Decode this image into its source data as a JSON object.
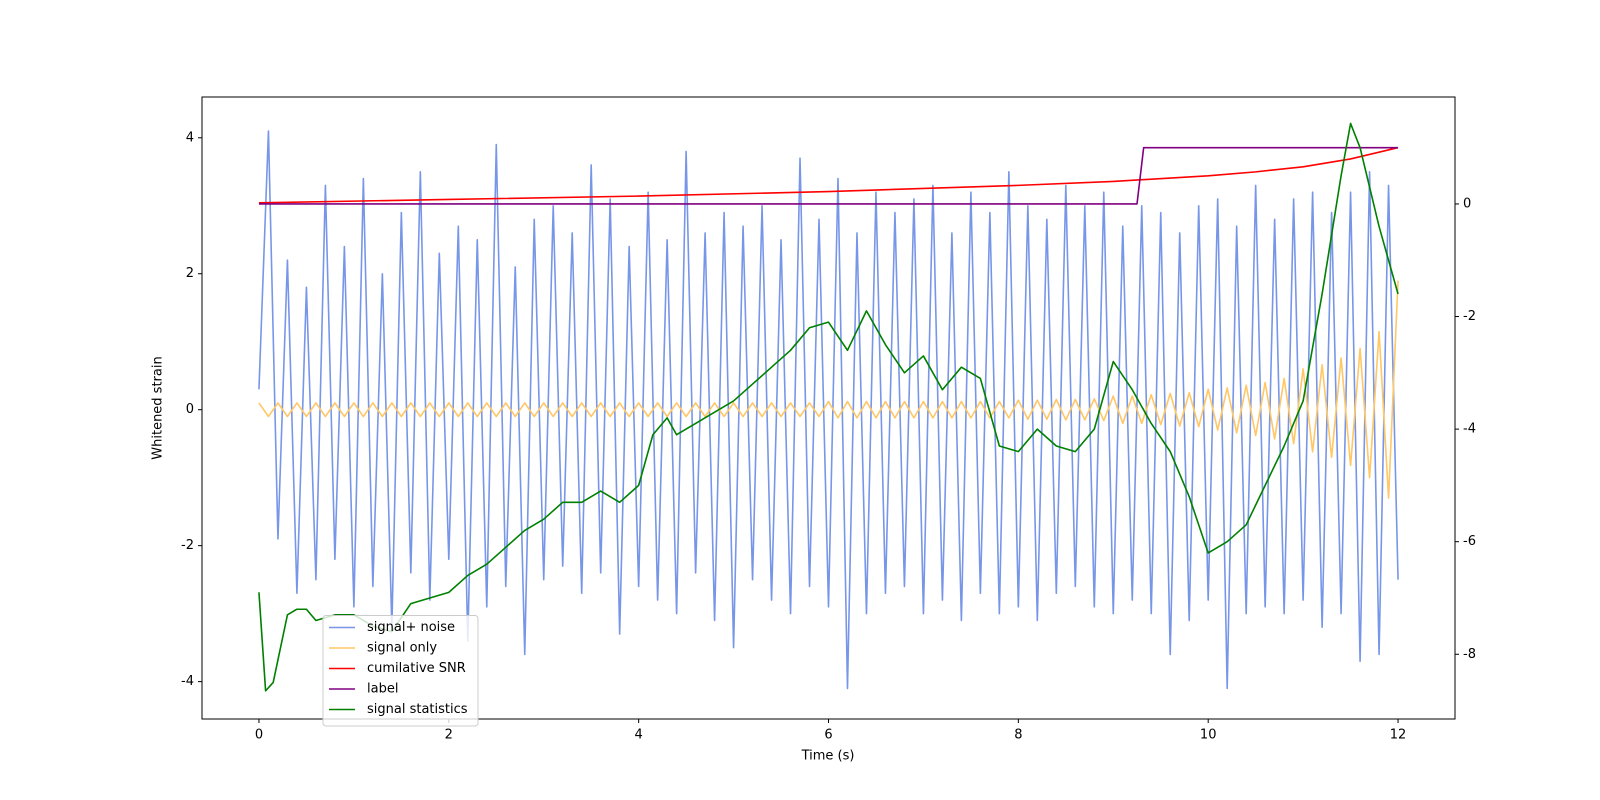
{
  "chart_data": {
    "type": "line",
    "xlabel": "Time (s)",
    "ylabel": "Whitened strain",
    "xlim": [
      -0.6,
      12.6
    ],
    "xticks": [
      0,
      2,
      4,
      6,
      8,
      10,
      12
    ],
    "ylim": [
      -4.55,
      4.6
    ],
    "yticks": [
      -4,
      -2,
      0,
      2,
      4
    ],
    "y2lim": [
      -9.15,
      1.9
    ],
    "y2ticks": [
      -8,
      -6,
      -4,
      -2,
      0
    ],
    "legend": "lower left",
    "series": [
      {
        "name": "signal+ noise",
        "color": "#7896e8",
        "axis": "y",
        "x": [
          0,
          0.1,
          0.2,
          0.3,
          0.4,
          0.5,
          0.6,
          0.7,
          0.8,
          0.9,
          1,
          1.1,
          1.2,
          1.3,
          1.4,
          1.5,
          1.6,
          1.7,
          1.8,
          1.9,
          2,
          2.1,
          2.2,
          2.3,
          2.4,
          2.5,
          2.6,
          2.7,
          2.8,
          2.9,
          3,
          3.1,
          3.2,
          3.3,
          3.4,
          3.5,
          3.6,
          3.7,
          3.8,
          3.9,
          4,
          4.1,
          4.2,
          4.3,
          4.4,
          4.5,
          4.6,
          4.7,
          4.8,
          4.9,
          5,
          5.1,
          5.2,
          5.3,
          5.4,
          5.5,
          5.6,
          5.7,
          5.8,
          5.9,
          6,
          6.1,
          6.2,
          6.3,
          6.4,
          6.5,
          6.6,
          6.7,
          6.8,
          6.9,
          7,
          7.1,
          7.2,
          7.3,
          7.4,
          7.5,
          7.6,
          7.7,
          7.8,
          7.9,
          8,
          8.1,
          8.2,
          8.3,
          8.4,
          8.5,
          8.6,
          8.7,
          8.8,
          8.9,
          9,
          9.1,
          9.2,
          9.3,
          9.4,
          9.5,
          9.6,
          9.7,
          9.8,
          9.9,
          10,
          10.1,
          10.2,
          10.3,
          10.4,
          10.5,
          10.6,
          10.7,
          10.8,
          10.9,
          11,
          11.1,
          11.2,
          11.3,
          11.4,
          11.5,
          11.6,
          11.7,
          11.8,
          11.9,
          12
        ],
        "values": [
          0.3,
          4.1,
          -1.9,
          2.2,
          -2.7,
          1.8,
          -2.5,
          3.3,
          -2.2,
          2.4,
          -2.9,
          3.4,
          -2.6,
          2.0,
          -3.2,
          2.9,
          -2.4,
          3.5,
          -2.8,
          2.3,
          -2.2,
          2.7,
          -3.4,
          2.5,
          -2.9,
          3.9,
          -2.6,
          2.1,
          -3.6,
          2.8,
          -2.5,
          3.0,
          -2.3,
          2.6,
          -2.7,
          3.6,
          -2.4,
          3.1,
          -3.3,
          2.4,
          -2.6,
          3.2,
          -2.8,
          2.5,
          -3.0,
          3.8,
          -2.4,
          2.6,
          -3.1,
          2.9,
          -3.5,
          2.7,
          -2.5,
          3.0,
          -2.8,
          2.5,
          -3.0,
          3.7,
          -2.6,
          2.8,
          -2.9,
          3.4,
          -4.1,
          2.6,
          -3.0,
          3.2,
          -2.7,
          2.9,
          -2.6,
          3.1,
          -3.0,
          3.3,
          -2.8,
          2.6,
          -3.1,
          3.2,
          -2.7,
          2.9,
          -3.0,
          3.5,
          -2.9,
          3.0,
          -3.1,
          2.8,
          -2.7,
          3.3,
          -2.6,
          3.0,
          -2.9,
          3.2,
          -3.0,
          2.7,
          -2.8,
          3.0,
          -3.0,
          2.9,
          -3.6,
          2.6,
          -3.1,
          3.0,
          -2.8,
          3.1,
          -4.1,
          2.7,
          -3.0,
          3.3,
          -2.9,
          2.8,
          -3.0,
          3.1,
          -2.8,
          3.2,
          -3.2,
          2.9,
          -3.0,
          3.2,
          -3.7,
          3.5,
          -3.6,
          3.3,
          -2.5
        ]
      },
      {
        "name": "signal only",
        "color": "#ffc766",
        "axis": "y",
        "x": [
          0,
          0.1,
          0.2,
          0.3,
          0.4,
          0.5,
          0.6,
          0.7,
          0.8,
          0.9,
          1,
          1.1,
          1.2,
          1.3,
          1.4,
          1.5,
          1.6,
          1.7,
          1.8,
          1.9,
          2,
          2.1,
          2.2,
          2.3,
          2.4,
          2.5,
          2.6,
          2.7,
          2.8,
          2.9,
          3,
          3.1,
          3.2,
          3.3,
          3.4,
          3.5,
          3.6,
          3.7,
          3.8,
          3.9,
          4,
          4.1,
          4.2,
          4.3,
          4.4,
          4.5,
          4.6,
          4.7,
          4.8,
          4.9,
          5,
          5.1,
          5.2,
          5.3,
          5.4,
          5.5,
          5.6,
          5.7,
          5.8,
          5.9,
          6,
          6.1,
          6.2,
          6.3,
          6.4,
          6.5,
          6.6,
          6.7,
          6.8,
          6.9,
          7,
          7.1,
          7.2,
          7.3,
          7.4,
          7.5,
          7.6,
          7.7,
          7.8,
          7.9,
          8,
          8.1,
          8.2,
          8.3,
          8.4,
          8.5,
          8.6,
          8.7,
          8.8,
          8.9,
          9,
          9.1,
          9.2,
          9.3,
          9.4,
          9.5,
          9.6,
          9.7,
          9.8,
          9.9,
          10,
          10.1,
          10.2,
          10.3,
          10.4,
          10.5,
          10.6,
          10.7,
          10.8,
          10.9,
          11,
          11.1,
          11.2,
          11.3,
          11.4,
          11.5,
          11.6,
          11.7,
          11.8,
          11.9,
          12
        ],
        "values": [
          0.1,
          -0.1,
          0.1,
          -0.1,
          0.1,
          -0.1,
          0.1,
          -0.1,
          0.1,
          -0.1,
          0.1,
          -0.1,
          0.1,
          -0.1,
          0.1,
          -0.1,
          0.1,
          -0.1,
          0.1,
          -0.1,
          0.1,
          -0.1,
          0.1,
          -0.1,
          0.1,
          -0.1,
          0.1,
          -0.1,
          0.1,
          -0.1,
          0.1,
          -0.1,
          0.1,
          -0.1,
          0.1,
          -0.1,
          0.1,
          -0.1,
          0.1,
          -0.1,
          0.1,
          -0.1,
          0.1,
          -0.1,
          0.1,
          -0.1,
          0.1,
          -0.1,
          0.1,
          -0.1,
          0.1,
          -0.1,
          0.1,
          -0.1,
          0.1,
          -0.1,
          0.1,
          -0.1,
          0.1,
          -0.1,
          0.12,
          -0.12,
          0.12,
          -0.12,
          0.12,
          -0.12,
          0.12,
          -0.12,
          0.12,
          -0.12,
          0.12,
          -0.12,
          0.12,
          -0.12,
          0.12,
          -0.12,
          0.12,
          -0.12,
          0.12,
          -0.12,
          0.14,
          -0.14,
          0.14,
          -0.14,
          0.15,
          -0.15,
          0.15,
          -0.15,
          0.16,
          -0.16,
          0.2,
          -0.2,
          0.2,
          -0.2,
          0.22,
          -0.22,
          0.24,
          -0.24,
          0.25,
          -0.25,
          0.3,
          -0.3,
          0.32,
          -0.34,
          0.36,
          -0.38,
          0.4,
          -0.43,
          0.46,
          -0.5,
          0.6,
          -0.62,
          0.66,
          -0.7,
          0.76,
          -0.82,
          0.9,
          -1.0,
          1.15,
          -1.3,
          1.9
        ]
      },
      {
        "name": "cumilative SNR",
        "color": "#ff0000",
        "axis": "y2",
        "x": [
          0,
          2,
          4,
          6,
          8,
          9,
          10,
          10.5,
          11,
          11.5,
          12
        ],
        "values": [
          0.02,
          0.08,
          0.14,
          0.22,
          0.33,
          0.4,
          0.5,
          0.57,
          0.66,
          0.8,
          1.0
        ]
      },
      {
        "name": "label",
        "color": "#800080",
        "axis": "y2",
        "x": [
          0,
          9.25,
          9.32,
          12
        ],
        "values": [
          0,
          0,
          1,
          1
        ]
      },
      {
        "name": "signal statistics",
        "color": "#008000",
        "axis": "y2",
        "x": [
          0,
          0.07,
          0.15,
          0.3,
          0.4,
          0.5,
          0.6,
          0.8,
          1.0,
          1.2,
          1.4,
          1.6,
          1.8,
          2.0,
          2.2,
          2.4,
          2.6,
          2.8,
          3.0,
          3.2,
          3.4,
          3.6,
          3.8,
          4.0,
          4.15,
          4.3,
          4.4,
          4.6,
          4.8,
          5.0,
          5.2,
          5.4,
          5.6,
          5.8,
          6.0,
          6.2,
          6.4,
          6.6,
          6.8,
          7.0,
          7.2,
          7.4,
          7.6,
          7.8,
          8.0,
          8.2,
          8.4,
          8.6,
          8.8,
          9.0,
          9.2,
          9.4,
          9.6,
          9.8,
          10.0,
          10.2,
          10.4,
          10.6,
          10.8,
          11.0,
          11.2,
          11.4,
          11.5,
          11.6,
          11.8,
          12.0
        ],
        "values": [
          -6.9,
          -8.65,
          -8.5,
          -7.3,
          -7.2,
          -7.2,
          -7.4,
          -7.3,
          -7.3,
          -7.5,
          -7.6,
          -7.1,
          -7.0,
          -6.9,
          -6.6,
          -6.4,
          -6.1,
          -5.8,
          -5.6,
          -5.3,
          -5.3,
          -5.1,
          -5.3,
          -5.0,
          -4.1,
          -3.8,
          -4.1,
          -3.9,
          -3.7,
          -3.5,
          -3.2,
          -2.9,
          -2.6,
          -2.2,
          -2.1,
          -2.6,
          -1.9,
          -2.5,
          -3.0,
          -2.7,
          -3.3,
          -2.9,
          -3.1,
          -4.3,
          -4.4,
          -4.0,
          -4.3,
          -4.4,
          -4.0,
          -2.8,
          -3.3,
          -3.9,
          -4.4,
          -5.2,
          -6.2,
          -6.0,
          -5.7,
          -5.0,
          -4.3,
          -3.5,
          -1.6,
          0.5,
          1.43,
          1.0,
          -0.4,
          -1.6
        ]
      }
    ]
  }
}
